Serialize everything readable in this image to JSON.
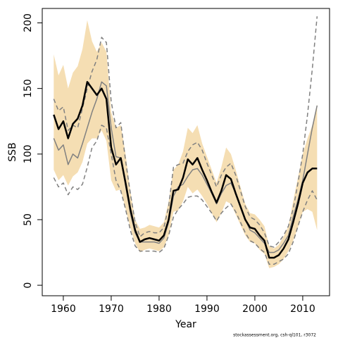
{
  "chart_data": {
    "type": "line",
    "x_label": "Year",
    "y_label": "SSB",
    "footnote": "stockassessment.org, csh-ql101, r3072",
    "x": [
      1958,
      1959,
      1960,
      1961,
      1962,
      1963,
      1964,
      1965,
      1966,
      1967,
      1968,
      1969,
      1970,
      1971,
      1972,
      1973,
      1974,
      1975,
      1976,
      1977,
      1978,
      1979,
      1980,
      1981,
      1982,
      1983,
      1984,
      1985,
      1986,
      1987,
      1988,
      1989,
      1990,
      1991,
      1992,
      1993,
      1994,
      1995,
      1996,
      1997,
      1998,
      1999,
      2000,
      2001,
      2002,
      2003,
      2004,
      2005,
      2006,
      2007,
      2008,
      2009,
      2010,
      2011,
      2012,
      2013
    ],
    "band": {
      "color": "#f5deb3",
      "upper": [
        176,
        160,
        168,
        150,
        162,
        167,
        180,
        202,
        186,
        178,
        185,
        178,
        132,
        120,
        122,
        100,
        72,
        50,
        43,
        44,
        46,
        45,
        44,
        48,
        64,
        88,
        92,
        102,
        120,
        116,
        122,
        108,
        98,
        88,
        78,
        90,
        105,
        100,
        88,
        75,
        62,
        55,
        54,
        50,
        45,
        30,
        28,
        31,
        37,
        45,
        64,
        82,
        100,
        112,
        122,
        138
      ],
      "lower": [
        88,
        80,
        84,
        76,
        83,
        86,
        94,
        108,
        112,
        112,
        118,
        110,
        80,
        72,
        73,
        58,
        44,
        32,
        25,
        27,
        28,
        27,
        26,
        29,
        38,
        56,
        57,
        64,
        75,
        70,
        73,
        68,
        62,
        55,
        48,
        55,
        64,
        62,
        54,
        46,
        38,
        33,
        32,
        27,
        24,
        13,
        14,
        16,
        20,
        26,
        34,
        44,
        56,
        58,
        56,
        42
      ]
    },
    "series": [
      {
        "color": "#808080",
        "dash": true,
        "width": 1.5,
        "values": [
          142,
          133,
          136,
          118,
          122,
          120,
          135,
          150,
          163,
          172,
          189,
          185,
          140,
          120,
          124,
          95,
          70,
          48,
          37,
          40,
          41,
          40,
          40,
          44,
          60,
          90,
          92,
          93,
          102,
          107,
          109,
          103,
          93,
          84,
          75,
          84,
          90,
          93,
          84,
          72,
          60,
          52,
          50,
          46,
          40,
          30,
          29,
          33,
          38,
          45,
          58,
          78,
          100,
          130,
          165,
          205
        ]
      },
      {
        "color": "#808080",
        "dash": true,
        "width": 1.5,
        "values": [
          82,
          75,
          78,
          69,
          75,
          73,
          77,
          90,
          105,
          110,
          122,
          120,
          100,
          80,
          72,
          58,
          42,
          30,
          26,
          26,
          26,
          26,
          25,
          28,
          38,
          52,
          58,
          62,
          67,
          68,
          68,
          65,
          60,
          55,
          49,
          55,
          59,
          62,
          56,
          48,
          40,
          34,
          32,
          28,
          25,
          16,
          16,
          18,
          20,
          24,
          33,
          45,
          56,
          65,
          72,
          65
        ]
      },
      {
        "color": "#808080",
        "dash": false,
        "width": 1.5,
        "values": [
          112,
          103,
          107,
          92,
          100,
          97,
          108,
          120,
          132,
          142,
          155,
          152,
          120,
          98,
          97,
          76,
          55,
          40,
          33,
          33,
          33,
          33,
          32,
          36,
          48,
          68,
          75,
          77,
          83,
          88,
          89,
          84,
          77,
          70,
          62,
          70,
          76,
          78,
          70,
          60,
          50,
          42,
          40,
          36,
          32,
          25,
          25,
          27,
          32,
          38,
          52,
          65,
          80,
          100,
          120,
          137
        ]
      },
      {
        "color": "#000000",
        "dash": false,
        "width": 2.5,
        "values": [
          130,
          119,
          125,
          112,
          123,
          127,
          137,
          155,
          150,
          145,
          150,
          142,
          105,
          92,
          97,
          78,
          58,
          42,
          33,
          35,
          36,
          35,
          34,
          38,
          50,
          72,
          73,
          82,
          96,
          92,
          97,
          88,
          80,
          71,
          63,
          72,
          84,
          81,
          70,
          60,
          50,
          44,
          43,
          38,
          34,
          21,
          21,
          23,
          28,
          35,
          48,
          62,
          78,
          86,
          89,
          89
        ]
      }
    ],
    "xlim": [
      1955.6,
      2015.6
    ],
    "xticks": [
      1960,
      1970,
      1980,
      1990,
      2000,
      2010
    ],
    "ylim": [
      -8,
      211
    ],
    "yticks": [
      0,
      50,
      100,
      150,
      200
    ]
  }
}
